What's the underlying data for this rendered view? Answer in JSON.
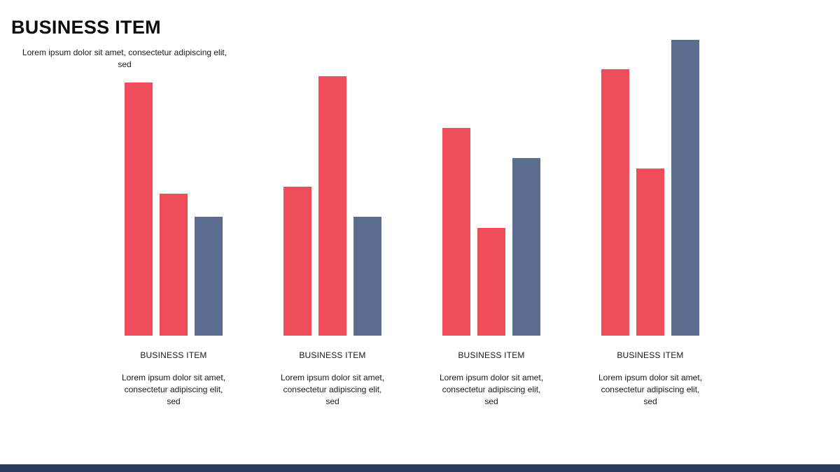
{
  "slide": {
    "title": "BUSINESS ITEM",
    "subtitle": "Lorem ipsum dolor sit amet, consectetur adipiscing elit,\nsed"
  },
  "colors": {
    "red": "#F04D5B",
    "blue": "#5C6C8E",
    "footer": "#2D3A5C"
  },
  "chart_data": {
    "type": "bar",
    "unit": "relative-height-px",
    "max_height": 430,
    "legend_position": "none",
    "grid": false,
    "groups": [
      {
        "label": "BUSINESS ITEM",
        "description": "Lorem ipsum dolor sit amet,\nconsectetur adipiscing elit,\nsed",
        "bars": [
          {
            "color": "red",
            "value": 362
          },
          {
            "color": "red",
            "value": 203
          },
          {
            "color": "blue",
            "value": 170
          }
        ]
      },
      {
        "label": "BUSINESS ITEM",
        "description": "Lorem ipsum dolor sit amet,\nconsectetur adipiscing elit,\nsed",
        "bars": [
          {
            "color": "red",
            "value": 213
          },
          {
            "color": "red",
            "value": 371
          },
          {
            "color": "blue",
            "value": 170
          }
        ]
      },
      {
        "label": "BUSINESS ITEM",
        "description": "Lorem ipsum dolor sit amet,\nconsectetur adipiscing elit,\nsed",
        "bars": [
          {
            "color": "red",
            "value": 297
          },
          {
            "color": "red",
            "value": 154
          },
          {
            "color": "blue",
            "value": 254
          }
        ]
      },
      {
        "label": "BUSINESS ITEM",
        "description": "Lorem ipsum dolor sit amet,\nconsectetur adipiscing elit,\nsed",
        "bars": [
          {
            "color": "red",
            "value": 381
          },
          {
            "color": "red",
            "value": 239
          },
          {
            "color": "blue",
            "value": 423
          }
        ]
      }
    ]
  }
}
